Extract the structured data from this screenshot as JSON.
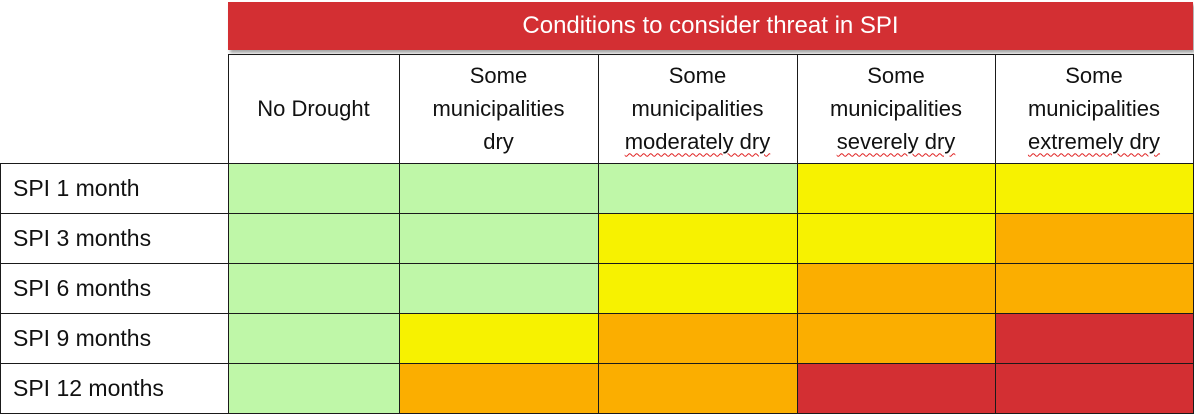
{
  "table": {
    "title": "Conditions to consider threat in SPI",
    "columns": [
      {
        "lines": [
          "No Drought"
        ],
        "wavy": false
      },
      {
        "lines": [
          "Some",
          "municipalities",
          "dry"
        ],
        "wavy": false
      },
      {
        "lines": [
          "Some",
          "municipalities",
          "moderately dry"
        ],
        "wavy": true
      },
      {
        "lines": [
          "Some",
          "municipalities",
          "severely dry"
        ],
        "wavy": true
      },
      {
        "lines": [
          "Some",
          "municipalities",
          "extremely dry"
        ],
        "wavy": true
      }
    ],
    "rows": [
      {
        "label": "SPI 1 month",
        "levels": [
          "none",
          "none",
          "none",
          "low",
          "low"
        ]
      },
      {
        "label": "SPI 3 months",
        "levels": [
          "none",
          "none",
          "low",
          "low",
          "mid"
        ]
      },
      {
        "label": "SPI 6 months",
        "levels": [
          "none",
          "none",
          "low",
          "mid",
          "mid"
        ]
      },
      {
        "label": "SPI 9 months",
        "levels": [
          "none",
          "low",
          "mid",
          "mid",
          "high"
        ]
      },
      {
        "label": "SPI 12 months",
        "levels": [
          "none",
          "mid",
          "mid",
          "high",
          "high"
        ]
      }
    ],
    "colors": {
      "none": "#bff7a8",
      "low": "#f7f200",
      "mid": "#fbae00",
      "high": "#d32f33",
      "title_band": "#d32f33"
    }
  }
}
